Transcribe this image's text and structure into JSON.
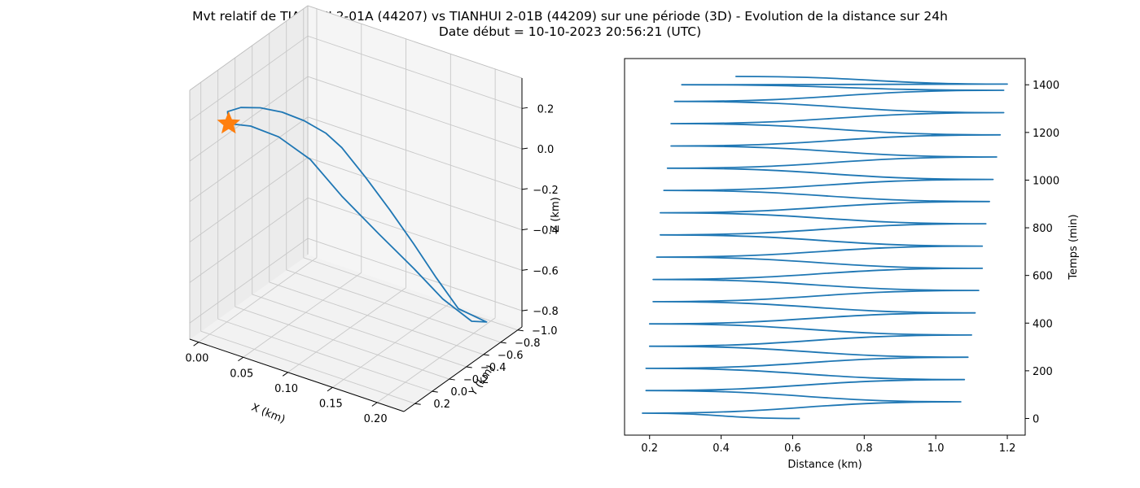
{
  "figure": {
    "title_line1": "Mvt relatif de TIANHUI 2-01A (44207) vs TIANHUI 2-01B (44209) sur une période (3D) - Evolution de la distance sur 24h",
    "title_line2": "Date début = 10-10-2023 20:56:21 (UTC)"
  },
  "chart_data": [
    {
      "type": "line3d",
      "xlabel": "X (km)",
      "ylabel": "Y (km)",
      "zlabel": "Z (km)",
      "x_ticks": [
        0.0,
        0.05,
        0.1,
        0.15,
        0.2
      ],
      "x_tick_labels": [
        "0.00",
        "0.05",
        "0.10",
        "0.15",
        "0.20"
      ],
      "y_ticks": [
        -1.0,
        -0.8,
        -0.6,
        -0.4,
        -0.2,
        0.0,
        0.2
      ],
      "y_tick_labels": [
        "−1.0",
        "−0.8",
        "−0.6",
        "−0.4",
        "−0.2",
        "0.0",
        "0.2"
      ],
      "z_ticks": [
        -0.8,
        -0.6,
        -0.4,
        -0.2,
        0.0,
        0.2
      ],
      "z_tick_labels": [
        "−0.8",
        "−0.6",
        "−0.4",
        "−0.2",
        "0.0",
        "0.2"
      ],
      "xlim": [
        -0.01,
        0.23
      ],
      "ylim": [
        -1.05,
        0.33
      ],
      "zlim": [
        -0.88,
        0.35
      ],
      "grid": true,
      "series_color": "#1f77b4",
      "marker_color": "#ff7f0e",
      "marker": "star",
      "marker_point": {
        "x": 0.025,
        "y": 0.24,
        "z": 0.21
      },
      "points": [
        {
          "x": 0.025,
          "y": 0.24,
          "z": 0.21
        },
        {
          "x": 0.02,
          "y": 0.2,
          "z": 0.25
        },
        {
          "x": 0.03,
          "y": 0.15,
          "z": 0.27
        },
        {
          "x": 0.045,
          "y": 0.08,
          "z": 0.27
        },
        {
          "x": 0.06,
          "y": -0.02,
          "z": 0.24
        },
        {
          "x": 0.075,
          "y": -0.12,
          "z": 0.19
        },
        {
          "x": 0.09,
          "y": -0.22,
          "z": 0.12
        },
        {
          "x": 0.1,
          "y": -0.3,
          "z": 0.04
        },
        {
          "x": 0.115,
          "y": -0.42,
          "z": -0.12
        },
        {
          "x": 0.13,
          "y": -0.55,
          "z": -0.3
        },
        {
          "x": 0.145,
          "y": -0.67,
          "z": -0.48
        },
        {
          "x": 0.16,
          "y": -0.78,
          "z": -0.66
        },
        {
          "x": 0.175,
          "y": -0.88,
          "z": -0.82
        },
        {
          "x": 0.2,
          "y": -0.95,
          "z": -0.87
        },
        {
          "x": 0.19,
          "y": -0.88,
          "z": -0.86
        },
        {
          "x": 0.17,
          "y": -0.75,
          "z": -0.74
        },
        {
          "x": 0.15,
          "y": -0.62,
          "z": -0.58
        },
        {
          "x": 0.125,
          "y": -0.47,
          "z": -0.4
        },
        {
          "x": 0.1,
          "y": -0.3,
          "z": -0.2
        },
        {
          "x": 0.08,
          "y": -0.14,
          "z": 0.0
        },
        {
          "x": 0.06,
          "y": 0.02,
          "z": 0.13
        },
        {
          "x": 0.04,
          "y": 0.14,
          "z": 0.19
        },
        {
          "x": 0.025,
          "y": 0.24,
          "z": 0.21
        }
      ]
    },
    {
      "type": "line",
      "xlabel": "Distance (km)",
      "ylabel": "Temps (min)",
      "xlim": [
        0.13,
        1.25
      ],
      "ylim": [
        -70,
        1510
      ],
      "x_ticks": [
        0.2,
        0.4,
        0.6,
        0.8,
        1.0,
        1.2
      ],
      "x_tick_labels": [
        "0.2",
        "0.4",
        "0.6",
        "0.8",
        "1.0",
        "1.2"
      ],
      "y_ticks": [
        0,
        200,
        400,
        600,
        800,
        1000,
        1200,
        1400
      ],
      "y_tick_labels": [
        "0",
        "200",
        "400",
        "600",
        "800",
        "1000",
        "1200",
        "1400"
      ],
      "y_axis_side": "right",
      "grid": false,
      "series_color": "#1f77b4",
      "series": [
        {
          "points": [
            [
              0.62,
              0
            ],
            [
              0.18,
              22
            ],
            [
              1.07,
              70
            ],
            [
              0.19,
              117
            ],
            [
              1.08,
              163
            ],
            [
              0.19,
              210
            ],
            [
              1.09,
              257
            ],
            [
              0.2,
              303
            ],
            [
              1.1,
              350
            ],
            [
              0.2,
              397
            ],
            [
              1.11,
              443
            ],
            [
              0.21,
              490
            ],
            [
              1.12,
              537
            ],
            [
              0.21,
              583
            ],
            [
              1.13,
              630
            ],
            [
              0.22,
              677
            ],
            [
              1.13,
              723
            ],
            [
              0.23,
              770
            ],
            [
              1.14,
              817
            ],
            [
              0.23,
              863
            ],
            [
              1.15,
              910
            ],
            [
              0.24,
              957
            ],
            [
              1.16,
              1003
            ],
            [
              0.25,
              1050
            ],
            [
              1.17,
              1097
            ],
            [
              0.26,
              1143
            ],
            [
              1.18,
              1190
            ],
            [
              0.26,
              1237
            ],
            [
              1.19,
              1283
            ],
            [
              0.27,
              1330
            ],
            [
              1.19,
              1377
            ],
            [
              0.29,
              1400
            ],
            [
              1.2,
              1403
            ],
            [
              0.44,
              1435
            ]
          ]
        }
      ]
    }
  ]
}
